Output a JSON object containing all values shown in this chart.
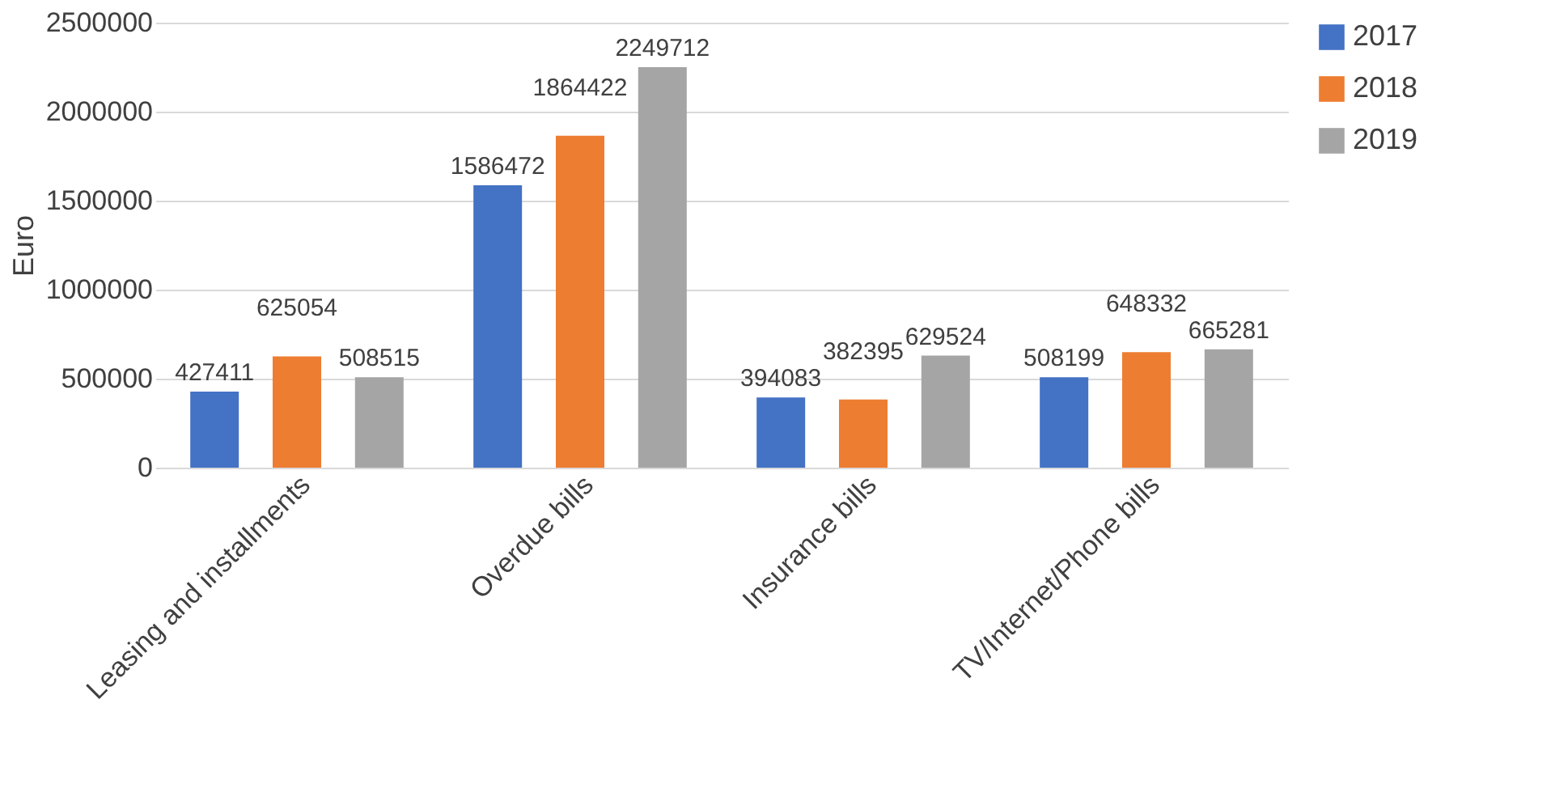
{
  "chart_data": {
    "type": "bar",
    "ylabel": "Euro",
    "categories": [
      "Leasing and installments",
      "Overdue bills",
      "Insurance bills",
      "TV/Internet/Phone bills"
    ],
    "series": [
      {
        "name": "2017",
        "color": "#4472c4",
        "values": [
          427411,
          1586472,
          394083,
          508199
        ]
      },
      {
        "name": "2018",
        "color": "#ed7d31",
        "values": [
          625054,
          1864422,
          382395,
          648332
        ]
      },
      {
        "name": "2019",
        "color": "#a5a5a5",
        "values": [
          508515,
          2249712,
          629524,
          665281
        ]
      }
    ],
    "ylim": [
      0,
      2500000
    ],
    "yticks": [
      0,
      500000,
      1000000,
      1500000,
      2000000,
      2500000
    ],
    "grid": "y",
    "legend": "right",
    "data_labels": true
  }
}
